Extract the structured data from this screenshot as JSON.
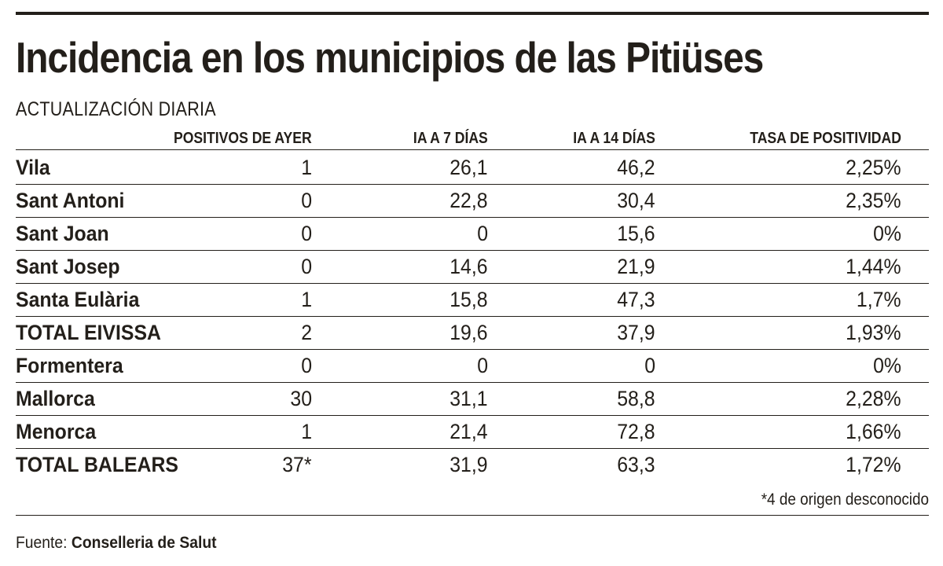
{
  "title": "Incidencia en los municipios de las Pitiüses",
  "subtitle": "ACTUALIZACIÓN DIARIA",
  "footnote": "*4 de origen desconocido",
  "source": {
    "label": "Fuente:",
    "org": "Conselleria de Salut"
  },
  "colors": {
    "text": "#231f1a",
    "background": "#ffffff"
  },
  "chart_data": {
    "type": "table",
    "title": "Incidencia en los municipios de las Pitiüses",
    "subtitle": "ACTUALIZACIÓN DIARIA",
    "columns": [
      "",
      "POSITIVOS DE AYER",
      "IA A 7 DÍAS",
      "IA A 14 DÍAS",
      "TASA DE POSITIVIDAD"
    ],
    "rows": [
      [
        "Vila",
        "1",
        "26,1",
        "46,2",
        "2,25%"
      ],
      [
        "Sant Antoni",
        "0",
        "22,8",
        "30,4",
        "2,35%"
      ],
      [
        "Sant Joan",
        "0",
        "0",
        "15,6",
        "0%"
      ],
      [
        "Sant Josep",
        "0",
        "14,6",
        "21,9",
        "1,44%"
      ],
      [
        "Santa Eulària",
        "1",
        "15,8",
        "47,3",
        "1,7%"
      ],
      [
        "TOTAL EIVISSA",
        "2",
        "19,6",
        "37,9",
        "1,93%"
      ],
      [
        "Formentera",
        "0",
        "0",
        "0",
        "0%"
      ],
      [
        "Mallorca",
        "30",
        "31,1",
        "58,8",
        "2,28%"
      ],
      [
        "Menorca",
        "1",
        "21,4",
        "72,8",
        "1,66%"
      ],
      [
        "TOTAL BALEARS",
        "37*",
        "31,9",
        "63,3",
        "1,72%"
      ]
    ]
  }
}
